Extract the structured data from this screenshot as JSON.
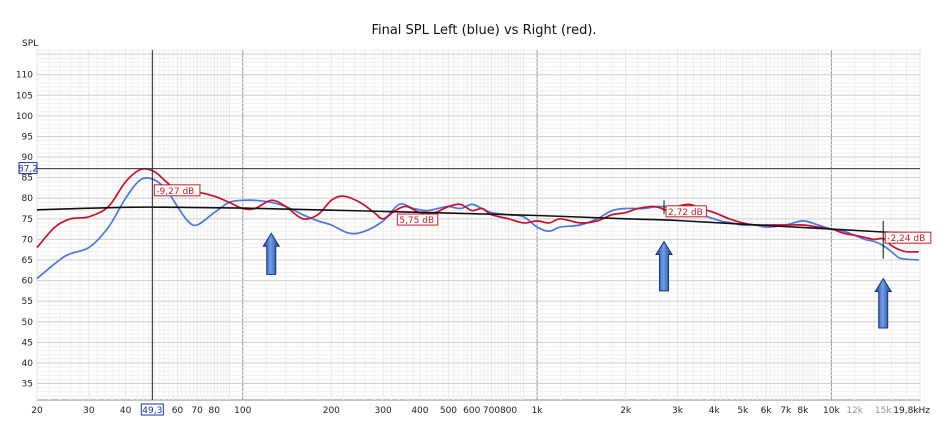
{
  "chart_data": {
    "type": "line",
    "title": "Final SPL Left (blue) vs Right (red).",
    "ylabel": "SPL",
    "xlabel": "",
    "x_scale": "log",
    "xlim": [
      20,
      20000
    ],
    "ylim": [
      31,
      116
    ],
    "grid": true,
    "y_ticks": [
      35,
      40,
      45,
      50,
      55,
      60,
      65,
      70,
      75,
      80,
      85,
      90,
      95,
      100,
      105,
      110
    ],
    "y_tick_labels": [
      "35",
      "40",
      "45",
      "50",
      "55",
      "60",
      "65",
      "70",
      "75",
      "80",
      "85",
      "90",
      "95",
      "100",
      "105",
      "110"
    ],
    "x_ticks": [
      {
        "value": 20,
        "label": "20",
        "dim": false
      },
      {
        "value": 30,
        "label": "30",
        "dim": false
      },
      {
        "value": 40,
        "label": "40",
        "dim": false
      },
      {
        "value": 60,
        "label": "60",
        "dim": false
      },
      {
        "value": 70,
        "label": "70",
        "dim": false
      },
      {
        "value": 80,
        "label": "80",
        "dim": false
      },
      {
        "value": 100,
        "label": "100",
        "dim": false
      },
      {
        "value": 200,
        "label": "200",
        "dim": false
      },
      {
        "value": 300,
        "label": "300",
        "dim": false
      },
      {
        "value": 400,
        "label": "400",
        "dim": false
      },
      {
        "value": 500,
        "label": "500",
        "dim": false
      },
      {
        "value": 600,
        "label": "600",
        "dim": false
      },
      {
        "value": 700,
        "label": "700",
        "dim": false
      },
      {
        "value": 800,
        "label": "800",
        "dim": false
      },
      {
        "value": 1000,
        "label": "1k",
        "dim": false
      },
      {
        "value": 2000,
        "label": "2k",
        "dim": false
      },
      {
        "value": 3000,
        "label": "3k",
        "dim": false
      },
      {
        "value": 4000,
        "label": "4k",
        "dim": false
      },
      {
        "value": 5000,
        "label": "5k",
        "dim": false
      },
      {
        "value": 6000,
        "label": "6k",
        "dim": false
      },
      {
        "value": 7000,
        "label": "7k",
        "dim": false
      },
      {
        "value": 8000,
        "label": "8k",
        "dim": false
      },
      {
        "value": 10000,
        "label": "10k",
        "dim": false
      },
      {
        "value": 12000,
        "label": "12k",
        "dim": true
      },
      {
        "value": 15000,
        "label": "15k",
        "dim": true
      },
      {
        "value": 19800,
        "label": "19,8kHz",
        "dim": false
      }
    ],
    "cursor": {
      "x": 49.3,
      "y": 87.2,
      "x_label": "49,3",
      "y_label": "87,2"
    },
    "series": [
      {
        "color": "#4a78e0",
        "x": [
          20,
          25,
          30,
          35,
          40,
          45,
          50,
          55,
          60,
          65,
          70,
          80,
          90,
          100,
          110,
          125,
          140,
          160,
          180,
          200,
          230,
          260,
          300,
          340,
          380,
          420,
          460,
          500,
          550,
          600,
          650,
          700,
          800,
          900,
          1000,
          1100,
          1200,
          1400,
          1600,
          1800,
          2000,
          2300,
          2600,
          3000,
          3400,
          3800,
          4200,
          4600,
          5000,
          5500,
          6000,
          7000,
          8000,
          9000,
          10000,
          11000,
          12000,
          13000,
          14000,
          15000,
          16000,
          17000,
          18000,
          19800
        ],
        "values": [
          60.5,
          66,
          68,
          73,
          80,
          84.5,
          84.5,
          82,
          78,
          74.5,
          73.5,
          76.5,
          79,
          79.5,
          79.5,
          79,
          78,
          76,
          74.5,
          73.5,
          71.5,
          72,
          74.5,
          78.5,
          77.5,
          77,
          77.5,
          78,
          77.5,
          78.5,
          77.5,
          76.5,
          76,
          75.5,
          73,
          72,
          73,
          73.5,
          75,
          77,
          77.5,
          77.5,
          78,
          77.5,
          76.5,
          75.5,
          74.5,
          74,
          73.5,
          73.5,
          73,
          73.5,
          74.5,
          73.5,
          72.5,
          72,
          71,
          70,
          69.5,
          68.5,
          67,
          65.5,
          65.2,
          65
        ]
      },
      {
        "color": "#c8102e",
        "x": [
          20,
          23,
          26,
          30,
          35,
          40,
          45,
          50,
          55,
          60,
          70,
          80,
          90,
          100,
          110,
          125,
          140,
          160,
          180,
          200,
          220,
          250,
          280,
          300,
          330,
          360,
          400,
          450,
          500,
          550,
          600,
          650,
          700,
          800,
          900,
          1000,
          1100,
          1200,
          1400,
          1600,
          1800,
          2000,
          2200,
          2500,
          2800,
          3000,
          3300,
          3600,
          4000,
          4500,
          5000,
          5500,
          6000,
          7000,
          8000,
          9000,
          10000,
          11000,
          12000,
          13000,
          14000,
          15000,
          16000,
          17000,
          18000,
          19800
        ],
        "values": [
          68,
          73,
          75,
          75.5,
          78,
          84,
          87,
          86.5,
          84,
          82,
          81.5,
          80.5,
          79,
          77.5,
          77.5,
          79.5,
          78,
          75,
          76,
          79.5,
          80.5,
          79,
          76.5,
          75,
          77,
          78,
          76.5,
          76.5,
          78,
          78.5,
          77,
          77.5,
          76,
          75,
          74,
          74.5,
          74,
          75,
          74,
          74.5,
          76,
          76.5,
          77.5,
          78,
          77,
          78,
          78.5,
          77.5,
          76.5,
          75,
          74,
          73.5,
          73.5,
          73.5,
          73.5,
          73,
          72.5,
          71.5,
          71,
          70.5,
          70,
          70.2,
          68.5,
          67.5,
          67,
          67
        ]
      },
      {
        "color": "#111111",
        "x": [
          20,
          40,
          60,
          100,
          200,
          300,
          500,
          1000,
          2000,
          3000,
          5000,
          10000,
          15000,
          19800
        ],
        "values": [
          77.2,
          77.8,
          77.8,
          77.6,
          77.1,
          76.8,
          76.4,
          75.8,
          75,
          74.6,
          73.7,
          72.5,
          71.8,
          71.5
        ]
      }
    ],
    "annotations": [
      {
        "text": "-9,27 dB",
        "x": 49.3,
        "y": 81.8
      },
      {
        "text": "5,75 dB",
        "x": 330,
        "y": 74.7
      },
      {
        "text": "2,72 dB",
        "x": 2700,
        "y": 76.7
      },
      {
        "text": "-2,24 dB",
        "x": 15000,
        "y": 70.3
      }
    ],
    "markers": [
      {
        "x": 2700,
        "y_top": 79.5,
        "y_bottom": 76.2
      },
      {
        "x": 15000,
        "y_top": 74.5,
        "y_bottom": 65.3
      }
    ],
    "arrows": [
      {
        "x": 125,
        "y_tip": 71.5,
        "y_base": 61.5
      },
      {
        "x": 2700,
        "y_tip": 69.5,
        "y_base": 57.5
      },
      {
        "x": 15000,
        "y_tip": 60.5,
        "y_base": 48.5
      }
    ]
  }
}
